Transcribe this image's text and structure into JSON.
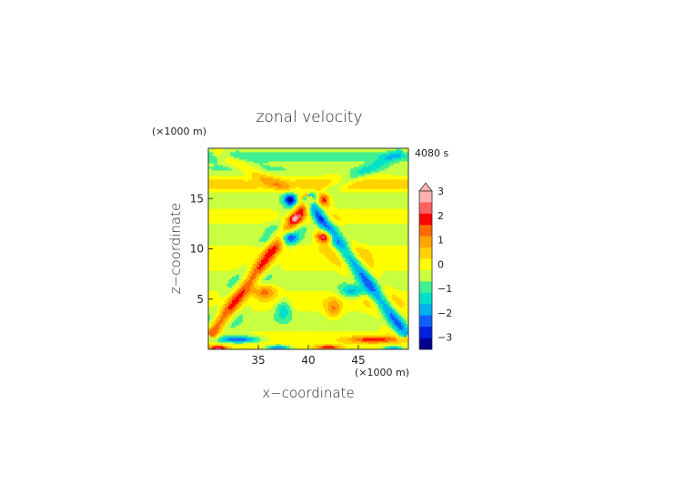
{
  "chart_data": {
    "type": "heatmap",
    "title": "zonal velocity",
    "xlabel": "x−coordinate",
    "ylabel": "z−coordinate",
    "x_unit": "(×1000 m)",
    "y_unit": "(×1000 m)",
    "time_label": "4080 s",
    "xlim": [
      30,
      50
    ],
    "ylim": [
      0,
      20
    ],
    "x_ticks": [
      "35",
      "40",
      "45"
    ],
    "y_ticks": [
      "5",
      "10",
      "15"
    ],
    "colorbar": {
      "labels": [
        "3",
        "2",
        "1",
        "0",
        "−1",
        "−2",
        "−3"
      ],
      "levels": [
        3.5,
        3.0,
        2.5,
        2.0,
        1.5,
        1.0,
        0.5,
        0.0,
        -0.5,
        -1.0,
        -1.5,
        -2.0,
        -2.5,
        -3.0,
        -3.5
      ],
      "colors": [
        "#ffb0b0",
        "#ff6060",
        "#ff0000",
        "#ff6a00",
        "#ffa500",
        "#ffd200",
        "#ffff00",
        "#c8ff40",
        "#40f090",
        "#00e0c8",
        "#00b0f0",
        "#1060ff",
        "#0020e0",
        "#000090"
      ],
      "extend": "max"
    },
    "features": [
      {
        "type": "beam",
        "x1": 40,
        "z1": 14.8,
        "x2": 30.5,
        "z2": 1.8,
        "amp": 1.9,
        "width": 1.1,
        "period": 3.6
      },
      {
        "type": "beam",
        "x1": 40,
        "z1": 14.8,
        "x2": 49.5,
        "z2": 1.8,
        "amp": -1.9,
        "width": 1.1,
        "period": 3.6
      },
      {
        "type": "beam",
        "x1": 40,
        "z1": 14.8,
        "x2": 31,
        "z2": 19.5,
        "amp": 0.8,
        "width": 0.8,
        "period": 3.2
      },
      {
        "type": "beam",
        "x1": 40,
        "z1": 14.8,
        "x2": 49,
        "z2": 19.5,
        "amp": -0.8,
        "width": 0.8,
        "period": 3.2
      },
      {
        "type": "blob",
        "x": 38.2,
        "z": 15.0,
        "amp": -2.7,
        "sx": 0.65,
        "sz": 0.7
      },
      {
        "type": "blob",
        "x": 41.5,
        "z": 15.0,
        "amp": 2.5,
        "sx": 0.65,
        "sz": 0.7
      },
      {
        "type": "blob",
        "x": 38.0,
        "z": 11.2,
        "amp": -2.8,
        "sx": 0.8,
        "sz": 0.6
      },
      {
        "type": "blob",
        "x": 41.6,
        "z": 11.2,
        "amp": 2.9,
        "sx": 0.8,
        "sz": 0.6
      },
      {
        "type": "blob",
        "x": 38.7,
        "z": 13.0,
        "amp": 1.2,
        "sx": 0.55,
        "sz": 0.45
      },
      {
        "type": "blob",
        "x": 41.2,
        "z": 13.0,
        "amp": -1.1,
        "sx": 0.55,
        "sz": 0.45
      },
      {
        "type": "blob",
        "x": 35.5,
        "z": 5.8,
        "amp": 1.8,
        "sx": 1.3,
        "sz": 0.7
      },
      {
        "type": "blob",
        "x": 44.5,
        "z": 5.8,
        "amp": -1.8,
        "sx": 1.3,
        "sz": 0.7
      },
      {
        "type": "blob",
        "x": 37.5,
        "z": 4.0,
        "amp": -1.5,
        "sx": 0.8,
        "sz": 1.0
      },
      {
        "type": "blob",
        "x": 42.5,
        "z": 4.0,
        "amp": 1.4,
        "sx": 0.8,
        "sz": 1.0
      },
      {
        "type": "blob",
        "x": 33.0,
        "z": 1.0,
        "amp": -2.6,
        "sx": 2.2,
        "sz": 0.35
      },
      {
        "type": "blob",
        "x": 46.5,
        "z": 1.0,
        "amp": 2.0,
        "sx": 2.4,
        "sz": 0.35
      },
      {
        "type": "blob",
        "x": 31.0,
        "z": 0.15,
        "amp": 2.6,
        "sx": 1.0,
        "sz": 0.25
      },
      {
        "type": "blob",
        "x": 37.0,
        "z": 0.2,
        "amp": -2.4,
        "sx": 1.2,
        "sz": 0.25
      },
      {
        "type": "blob",
        "x": 42.0,
        "z": 0.2,
        "amp": 2.2,
        "sx": 1.2,
        "sz": 0.25
      },
      {
        "type": "blob",
        "x": 48.5,
        "z": 0.15,
        "amp": -2.0,
        "sx": 1.0,
        "sz": 0.25
      },
      {
        "type": "band",
        "z": 17.8,
        "amp": -0.55,
        "width": 0.6
      },
      {
        "type": "band",
        "z": 16.3,
        "amp": 0.55,
        "width": 0.6
      },
      {
        "type": "band",
        "z": 12.2,
        "amp": -0.5,
        "width": 0.6
      },
      {
        "type": "band",
        "z": 10.0,
        "amp": 0.45,
        "width": 0.6
      },
      {
        "type": "band",
        "z": 19.3,
        "amp": -0.6,
        "width": 0.5
      }
    ]
  }
}
